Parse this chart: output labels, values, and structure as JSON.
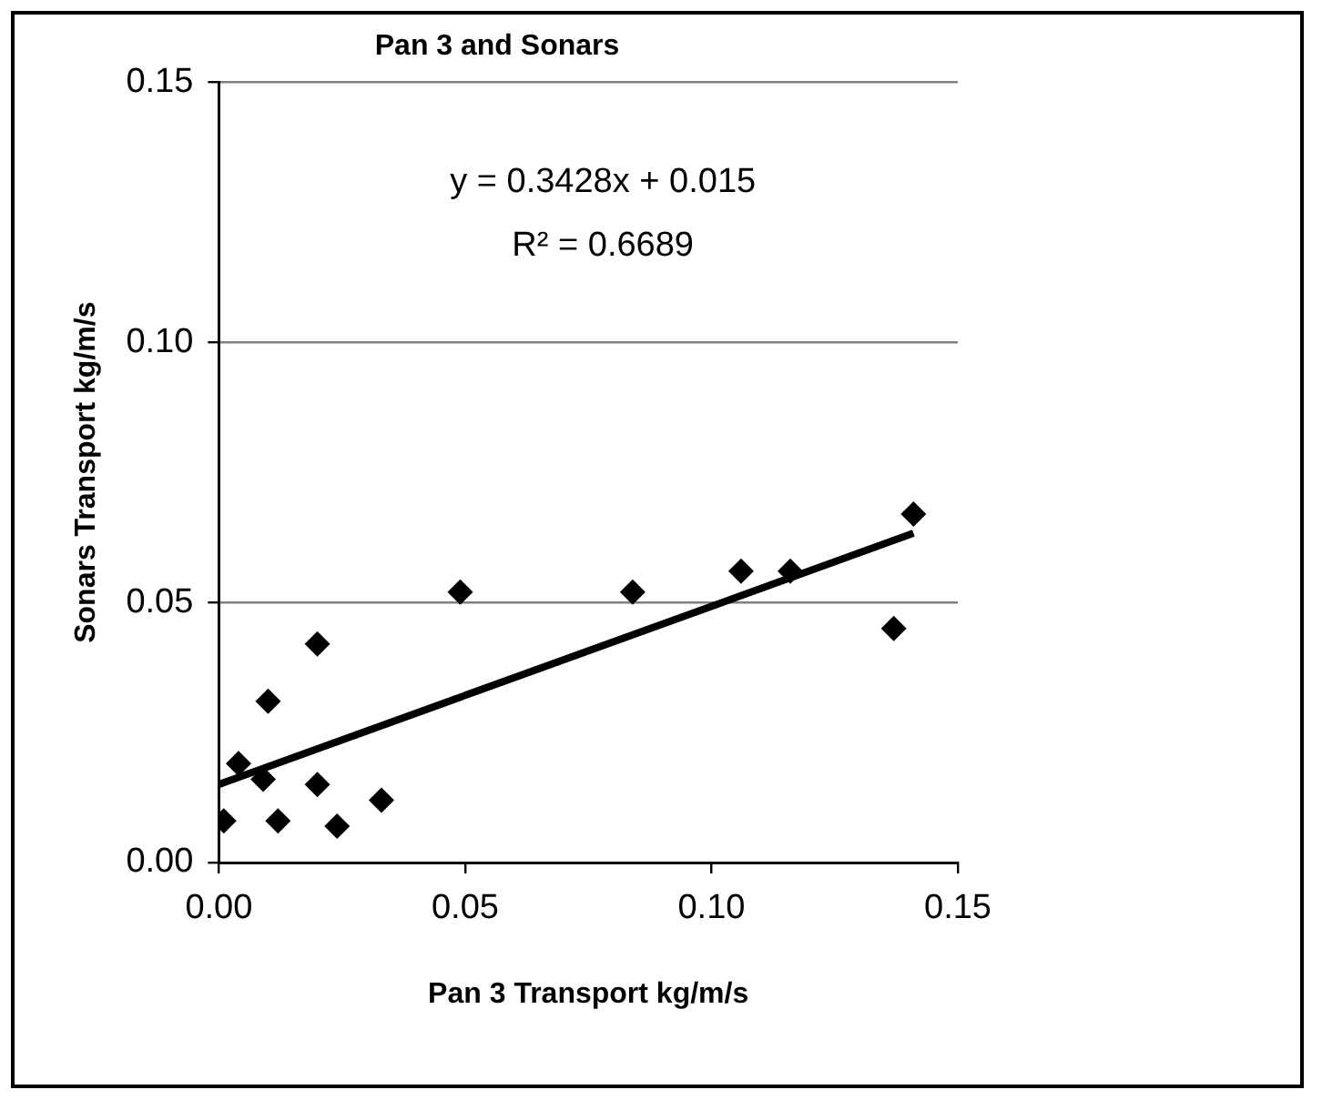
{
  "chart_data": {
    "type": "scatter",
    "title": "Pan 3 and Sonars",
    "xlabel": "Pan 3 Transport kg/m/s",
    "ylabel": "Sonars Transport kg/m/s",
    "x": [
      0.001,
      0.004,
      0.009,
      0.01,
      0.012,
      0.02,
      0.02,
      0.024,
      0.033,
      0.049,
      0.084,
      0.106,
      0.116,
      0.137,
      0.141
    ],
    "series": [
      {
        "type": "scatter",
        "color": "#000000",
        "marker": "diamond",
        "values": [
          0.008,
          0.019,
          0.016,
          0.031,
          0.008,
          0.042,
          0.015,
          0.007,
          0.012,
          0.052,
          0.052,
          0.056,
          0.056,
          0.045,
          0.067
        ]
      },
      {
        "type": "line",
        "color": "#000000",
        "x": [
          0,
          0.141
        ],
        "values": [
          0.015,
          0.0633
        ]
      }
    ],
    "annotations": [
      "y = 0.3428x + 0.015",
      "R² = 0.6689"
    ],
    "xlim": [
      0,
      0.15
    ],
    "xticks": [
      {
        "value": 0,
        "label": "0.00"
      },
      {
        "value": 0.05,
        "label": "0.05"
      },
      {
        "value": 0.1,
        "label": "0.10"
      },
      {
        "value": 0.15,
        "label": "0.15"
      }
    ],
    "ylim": [
      0,
      0.15
    ],
    "yticks": [
      {
        "value": 0,
        "label": "0.00"
      },
      {
        "value": 0.05,
        "label": "0.05"
      },
      {
        "value": 0.1,
        "label": "0.10"
      },
      {
        "value": 0.15,
        "label": "0.15"
      }
    ],
    "grid": "y",
    "legend": false
  }
}
